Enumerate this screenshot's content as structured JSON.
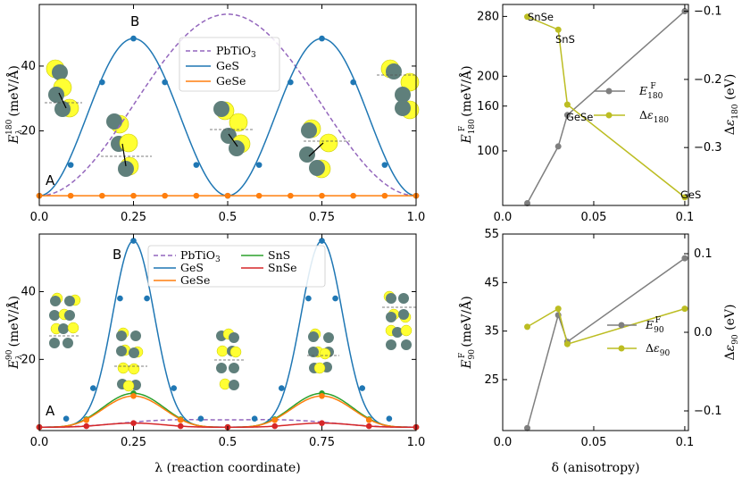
{
  "colors": {
    "pbtio3": "#9467bd",
    "ges": "#1f77b4",
    "gese": "#ff7f0e",
    "sns": "#2ca02c",
    "snse": "#d62728",
    "ef": "#7f7f7f",
    "de": "#bcbd22",
    "atom_dark": "#5f7f7b",
    "atom_light": "#ffff33"
  },
  "chart_data": [
    {
      "id": "top-left",
      "type": "line",
      "xlabel": "λ (reaction coordinate)",
      "ylabel": "E_λ^180 (meV/Å)",
      "ylabel_main": "E",
      "ylabel_sub": "λ",
      "ylabel_sup": "180",
      "ylabel_units": "(meV/Å)",
      "xlim": [
        0,
        1.0
      ],
      "ylim": [
        -3,
        59
      ],
      "xticks": [
        "0.0",
        "0.25",
        "0.5",
        "0.75",
        "1.0"
      ],
      "yticks": [
        "20",
        "40"
      ],
      "ytick_values": [
        20,
        40
      ],
      "annotations": [
        "A",
        "B"
      ],
      "legend": [
        "PbTiO3",
        "GeS",
        "GeSe"
      ],
      "legend_display": [
        "PbTiO",
        "3",
        "GeS",
        "GeSe"
      ],
      "series": [
        {
          "name": "PbTiO3",
          "style": "dashed",
          "color": "pbtio3",
          "x": [
            0,
            0.5,
            1.0
          ],
          "y": [
            0,
            56,
            0
          ],
          "shape": "cos1"
        },
        {
          "name": "GeS",
          "color": "ges",
          "x": [
            0,
            0.0833,
            0.1667,
            0.25,
            0.3333,
            0.4167,
            0.5,
            0.5833,
            0.6667,
            0.75,
            0.8333,
            0.9167,
            1.0
          ],
          "y": [
            0,
            9.5,
            35,
            48.5,
            35,
            9.5,
            0,
            9.5,
            35,
            48.5,
            35,
            9.5,
            0
          ],
          "shape": "cos2"
        },
        {
          "name": "GeSe",
          "color": "gese",
          "x": [
            0,
            0.0833,
            0.1667,
            0.25,
            0.3333,
            0.4167,
            0.5,
            0.5833,
            0.6667,
            0.75,
            0.8333,
            0.9167,
            1.0
          ],
          "y": [
            0,
            0,
            0,
            0,
            0,
            0,
            0,
            0,
            0,
            0,
            0,
            0,
            0
          ],
          "shape": "flat"
        }
      ]
    },
    {
      "id": "bottom-left",
      "type": "line",
      "xlabel": "λ (reaction coordinate)",
      "ylabel": "E_λ^90 (meV/Å)",
      "ylabel_main": "E",
      "ylabel_sub": "λ",
      "ylabel_sup": "90",
      "ylabel_units": "(meV/Å)",
      "xlim": [
        0,
        1.0
      ],
      "ylim": [
        -1,
        57
      ],
      "xticks": [
        "0.0",
        "0.25",
        "0.5",
        "0.75",
        "1.0"
      ],
      "yticks": [
        "20",
        "40"
      ],
      "ytick_values": [
        20,
        40
      ],
      "annotations": [
        "A",
        "B"
      ],
      "legend": [
        "PbTiO3",
        "GeS",
        "GeSe",
        "SnS",
        "SnSe"
      ],
      "legend_display": [
        "PbTiO",
        "3",
        "GeS",
        "GeSe",
        "SnS",
        "SnSe"
      ],
      "series": [
        {
          "name": "PbTiO3",
          "style": "dashed",
          "color": "pbtio3",
          "x": [
            0,
            0.25,
            0.5,
            0.75,
            1.0
          ],
          "y": [
            0,
            2.2,
            3,
            2.2,
            0
          ],
          "shape": "cos1"
        },
        {
          "name": "GeS",
          "color": "ges",
          "x": [
            0,
            0.0714,
            0.1429,
            0.2143,
            0.25,
            0.2857,
            0.3571,
            0.4286,
            0.5,
            0.5714,
            0.6429,
            0.7143,
            0.75,
            0.7857,
            0.8571,
            0.9286,
            1.0
          ],
          "y": [
            0,
            2.5,
            11.5,
            38,
            55,
            38,
            11.5,
            2.5,
            0,
            2.5,
            11.5,
            38,
            55,
            38,
            11.5,
            2.5,
            0
          ],
          "shape": "gauss"
        },
        {
          "name": "SnS",
          "color": "sns",
          "x": [
            0,
            0.125,
            0.25,
            0.375,
            0.5,
            0.625,
            0.75,
            0.875,
            1.0
          ],
          "y": [
            0,
            2.3,
            10,
            2.3,
            0,
            2.3,
            10,
            2.3,
            0
          ],
          "shape": "cos2"
        },
        {
          "name": "GeSe",
          "color": "gese",
          "x": [
            0,
            0.125,
            0.25,
            0.375,
            0.5,
            0.625,
            0.75,
            0.875,
            1.0
          ],
          "y": [
            0,
            2.1,
            9.2,
            2.1,
            0,
            2.1,
            9.2,
            2.1,
            0
          ],
          "shape": "cos2"
        },
        {
          "name": "SnSe",
          "color": "snse",
          "x": [
            0,
            0.125,
            0.25,
            0.375,
            0.5,
            0.625,
            0.75,
            0.875,
            1.0
          ],
          "y": [
            0,
            0.3,
            1.2,
            0.3,
            0,
            0.3,
            1.2,
            0.3,
            0
          ],
          "shape": "cos2"
        }
      ]
    },
    {
      "id": "top-right",
      "type": "line",
      "xlabel": "",
      "ylabel_left": "E_180^F (meV/Å)",
      "ylabel_right": "Δε_180 (eV)",
      "xlim": [
        0.0,
        0.102
      ],
      "ylim_left": [
        27,
        296
      ],
      "ylim_right": [
        -0.385,
        -0.09
      ],
      "xticks": [
        "0.0",
        "0.05",
        "0.1"
      ],
      "yticks_left": [
        "100",
        "160",
        "200",
        "280"
      ],
      "ytick_values_left": [
        100,
        160,
        200,
        280
      ],
      "yticks_right": [
        "-0.1",
        "-0.2",
        "-0.3"
      ],
      "ytick_values_right": [
        -0.1,
        -0.2,
        -0.3
      ],
      "point_labels": [
        "SnSe",
        "SnS",
        "GeSe",
        "GeS"
      ],
      "legend": [
        "E^F_180",
        "Δε_180"
      ],
      "series": [
        {
          "name": "E^F_180",
          "axis": "left",
          "color": "ef",
          "x": [
            0.0135,
            0.0305,
            0.0355,
            0.1
          ],
          "y": [
            30,
            106,
            148,
            287
          ]
        },
        {
          "name": "Δε_180",
          "axis": "right",
          "color": "de",
          "x": [
            0.0135,
            0.0305,
            0.0355,
            0.1
          ],
          "y": [
            -0.108,
            -0.127,
            -0.237,
            -0.373
          ]
        }
      ]
    },
    {
      "id": "bottom-right",
      "type": "line",
      "xlabel": "δ (anisotropy)",
      "ylabel_left": "E_90^F (meV/Å)",
      "ylabel_right": "Δε_90 (eV)",
      "xlim": [
        0.0,
        0.102
      ],
      "ylim_left": [
        14.5,
        55
      ],
      "ylim_right": [
        -0.125,
        0.125
      ],
      "xticks": [
        "0.0",
        "0.05",
        "0.1"
      ],
      "yticks_left": [
        "25",
        "35",
        "45",
        "55"
      ],
      "ytick_values_left": [
        25,
        35,
        45,
        55
      ],
      "yticks_right": [
        "0.1",
        "0.0",
        "-0.1"
      ],
      "ytick_values_right": [
        0.1,
        0.0,
        -0.1
      ],
      "legend": [
        "E^F_90",
        "Δε_90"
      ],
      "series": [
        {
          "name": "E^F_90",
          "axis": "left",
          "color": "ef",
          "x": [
            0.0135,
            0.0305,
            0.0355,
            0.1
          ],
          "y": [
            15,
            38.3,
            32.8,
            50
          ]
        },
        {
          "name": "Δε_90",
          "axis": "right",
          "color": "de",
          "x": [
            0.0135,
            0.0305,
            0.0355,
            0.1
          ],
          "y": [
            0.007,
            0.03,
            -0.015,
            0.03
          ]
        }
      ]
    }
  ]
}
